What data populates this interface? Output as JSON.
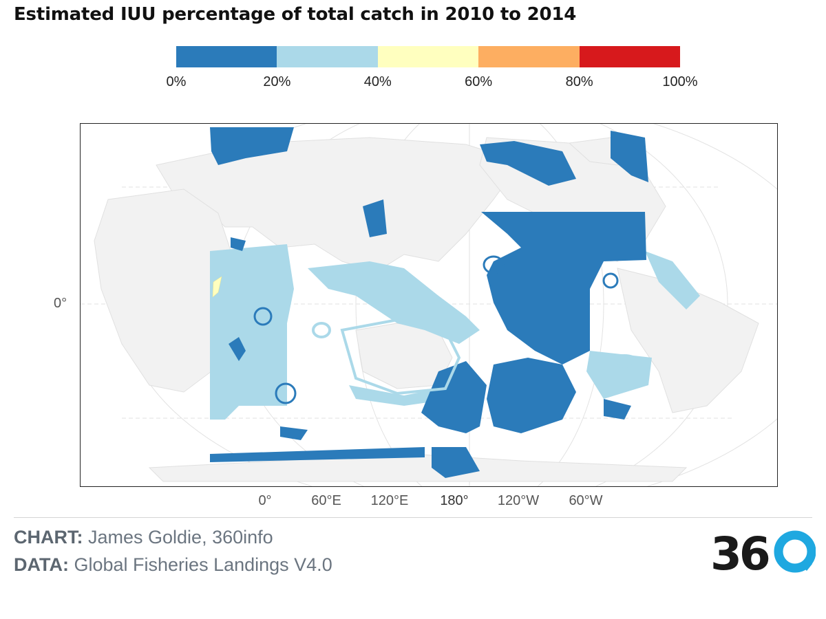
{
  "title": "Estimated IUU percentage of total catch in 2010 to 2014",
  "legend": {
    "bins": [
      {
        "color": "#2b7bba"
      },
      {
        "color": "#abd9e9"
      },
      {
        "color": "#ffffbf"
      },
      {
        "color": "#fdae61"
      },
      {
        "color": "#d7191c"
      }
    ],
    "ticks": [
      "0%",
      "20%",
      "40%",
      "60%",
      "80%",
      "100%"
    ]
  },
  "map": {
    "latitude_labels": [
      "0°"
    ],
    "longitude_labels": [
      "0°",
      "60°E",
      "120°E",
      "180°",
      "120°W",
      "60°W"
    ],
    "land_color": "#f2f2f2",
    "graticule_color": "#dddddd"
  },
  "footer": {
    "chart_key": "CHART:",
    "chart_value": " James Goldie, 360info",
    "data_key": "DATA:",
    "data_value": " Global Fisheries Landings V4.0"
  },
  "logo": {
    "text": "360",
    "accent_color": "#1fa8e0"
  }
}
